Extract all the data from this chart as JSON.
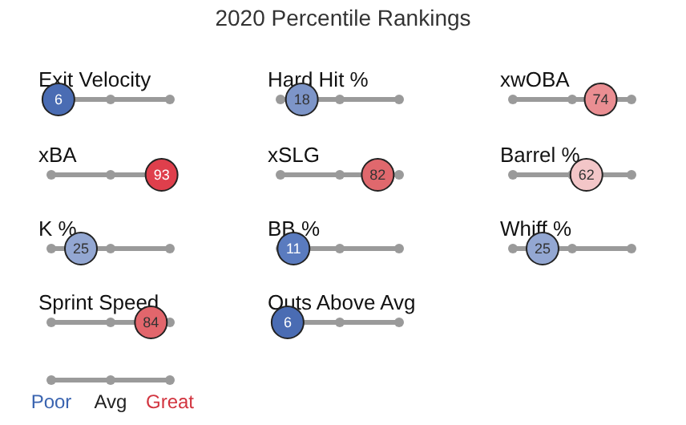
{
  "chart_data": {
    "type": "other",
    "title": "2020 Percentile Rankings",
    "categories": [
      "Exit Velocity",
      "Hard Hit %",
      "xwOBA",
      "xBA",
      "xSLG",
      "Barrel %",
      "K %",
      "BB %",
      "Whiff %",
      "Sprint Speed",
      "Outs Above Avg"
    ],
    "values": [
      6,
      18,
      74,
      93,
      82,
      62,
      25,
      11,
      25,
      84,
      6
    ],
    "colors": [
      "#4a6cb3",
      "#7d95c8",
      "#ea8e92",
      "#df3f4c",
      "#e0686d",
      "#f3c6c8",
      "#93a7d2",
      "#5a7bbf",
      "#93a7d2",
      "#e2666c",
      "#4a6cb3"
    ],
    "data_labels": true,
    "annotations": [
      "Poor",
      "Avg",
      "Great"
    ]
  }
}
